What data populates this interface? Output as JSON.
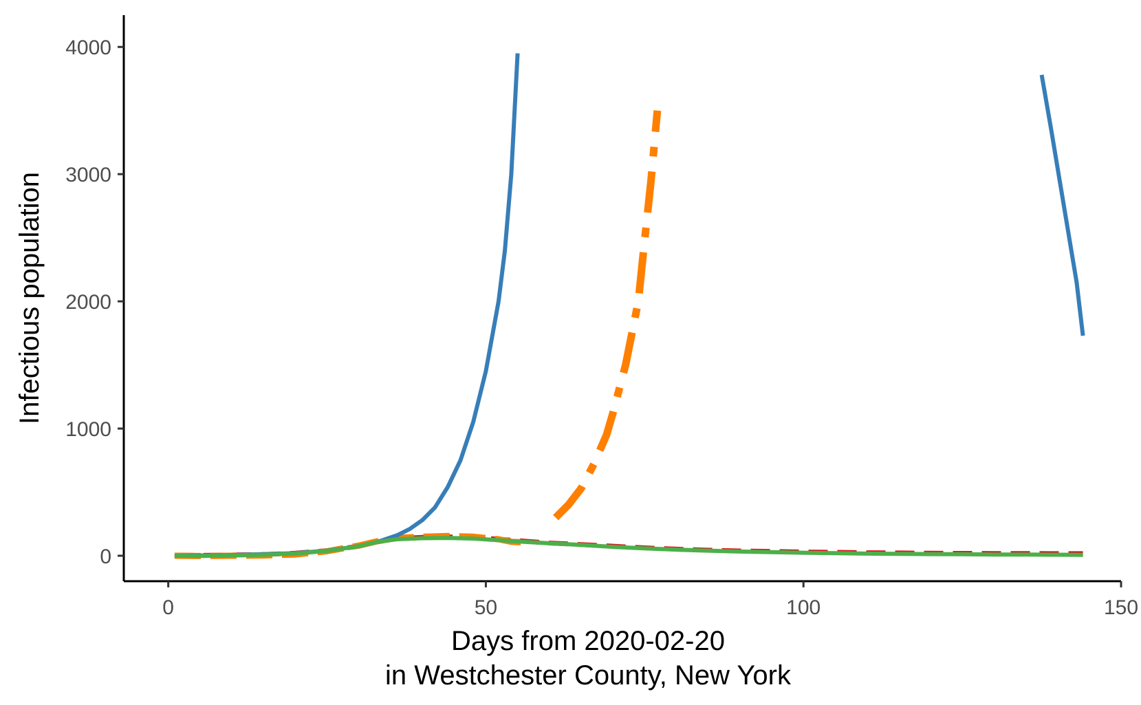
{
  "chart_data": {
    "type": "line",
    "title": "",
    "xlabel_line1": "Days from 2020-02-20",
    "xlabel_line2": "in Westchester County, New York",
    "ylabel": "Infectious population",
    "xlim": [
      -7,
      150
    ],
    "ylim": [
      -200,
      4250
    ],
    "x_ticks": [
      0,
      50,
      100,
      150
    ],
    "y_ticks": [
      0,
      1000,
      2000,
      3000,
      4000
    ],
    "grid": false,
    "legend": "none",
    "series": [
      {
        "color": "#d7191c",
        "dash": "28,14",
        "width": 7,
        "points": [
          [
            1,
            5
          ],
          [
            5,
            3
          ],
          [
            10,
            6
          ],
          [
            15,
            10
          ],
          [
            20,
            20
          ],
          [
            25,
            40
          ],
          [
            30,
            75
          ],
          [
            33,
            110
          ],
          [
            36,
            135
          ],
          [
            40,
            145
          ],
          [
            44,
            148
          ],
          [
            48,
            145
          ],
          [
            52,
            130
          ],
          [
            56,
            115
          ],
          [
            60,
            100
          ],
          [
            65,
            88
          ],
          [
            70,
            75
          ],
          [
            75,
            62
          ],
          [
            80,
            52
          ],
          [
            85,
            44
          ],
          [
            90,
            38
          ],
          [
            95,
            34
          ],
          [
            100,
            30
          ],
          [
            105,
            27
          ],
          [
            110,
            24
          ],
          [
            115,
            22
          ],
          [
            120,
            20
          ],
          [
            125,
            19
          ],
          [
            130,
            18
          ],
          [
            135,
            18
          ],
          [
            140,
            17
          ],
          [
            144,
            17
          ]
        ]
      },
      {
        "color": "#ff7f00",
        "dash": "38,14",
        "width": 9,
        "points": [
          [
            1,
            0
          ],
          [
            5,
            -2
          ],
          [
            10,
            0
          ],
          [
            15,
            2
          ],
          [
            20,
            10
          ],
          [
            25,
            35
          ],
          [
            30,
            80
          ],
          [
            33,
            115
          ],
          [
            36,
            140
          ],
          [
            40,
            150
          ],
          [
            44,
            155
          ],
          [
            48,
            150
          ],
          [
            52,
            130
          ],
          [
            54,
            110
          ],
          [
            56,
            105
          ]
        ]
      },
      {
        "color": "#ff7f00",
        "dash": "60,22,14,22",
        "width": 11,
        "points": [
          [
            61,
            300
          ],
          [
            63,
            400
          ],
          [
            65,
            530
          ],
          [
            67,
            720
          ],
          [
            69,
            950
          ],
          [
            70,
            1120
          ],
          [
            72,
            1500
          ],
          [
            74,
            2000
          ],
          [
            75,
            2480
          ],
          [
            76,
            2950
          ],
          [
            77,
            3500
          ]
        ]
      },
      {
        "color": "#377eb8",
        "dash": "",
        "width": 6,
        "points": [
          [
            1,
            0
          ],
          [
            10,
            5
          ],
          [
            20,
            20
          ],
          [
            25,
            40
          ],
          [
            30,
            75
          ],
          [
            33,
            110
          ],
          [
            36,
            160
          ],
          [
            38,
            210
          ],
          [
            40,
            280
          ],
          [
            42,
            380
          ],
          [
            44,
            540
          ],
          [
            46,
            750
          ],
          [
            48,
            1050
          ],
          [
            50,
            1450
          ],
          [
            52,
            2000
          ],
          [
            53,
            2400
          ],
          [
            54,
            3000
          ],
          [
            55,
            3950
          ]
        ]
      },
      {
        "color": "#377eb8",
        "dash": "",
        "width": 6,
        "points": [
          [
            137.5,
            3780
          ],
          [
            139,
            3350
          ],
          [
            141,
            2750
          ],
          [
            143,
            2150
          ],
          [
            144,
            1730
          ]
        ]
      },
      {
        "color": "#4daf4a",
        "dash": "",
        "width": 6,
        "points": [
          [
            1,
            0
          ],
          [
            5,
            -2
          ],
          [
            10,
            3
          ],
          [
            15,
            8
          ],
          [
            20,
            18
          ],
          [
            25,
            38
          ],
          [
            30,
            75
          ],
          [
            33,
            110
          ],
          [
            36,
            130
          ],
          [
            40,
            138
          ],
          [
            44,
            140
          ],
          [
            48,
            135
          ],
          [
            52,
            122
          ],
          [
            56,
            110
          ],
          [
            60,
            98
          ],
          [
            65,
            85
          ],
          [
            70,
            70
          ],
          [
            75,
            58
          ],
          [
            80,
            48
          ],
          [
            85,
            40
          ],
          [
            90,
            33
          ],
          [
            95,
            28
          ],
          [
            100,
            24
          ],
          [
            105,
            20
          ],
          [
            110,
            17
          ],
          [
            115,
            15
          ],
          [
            120,
            13
          ],
          [
            125,
            12
          ],
          [
            130,
            10
          ],
          [
            135,
            9
          ],
          [
            140,
            8
          ],
          [
            144,
            7
          ]
        ]
      }
    ]
  }
}
